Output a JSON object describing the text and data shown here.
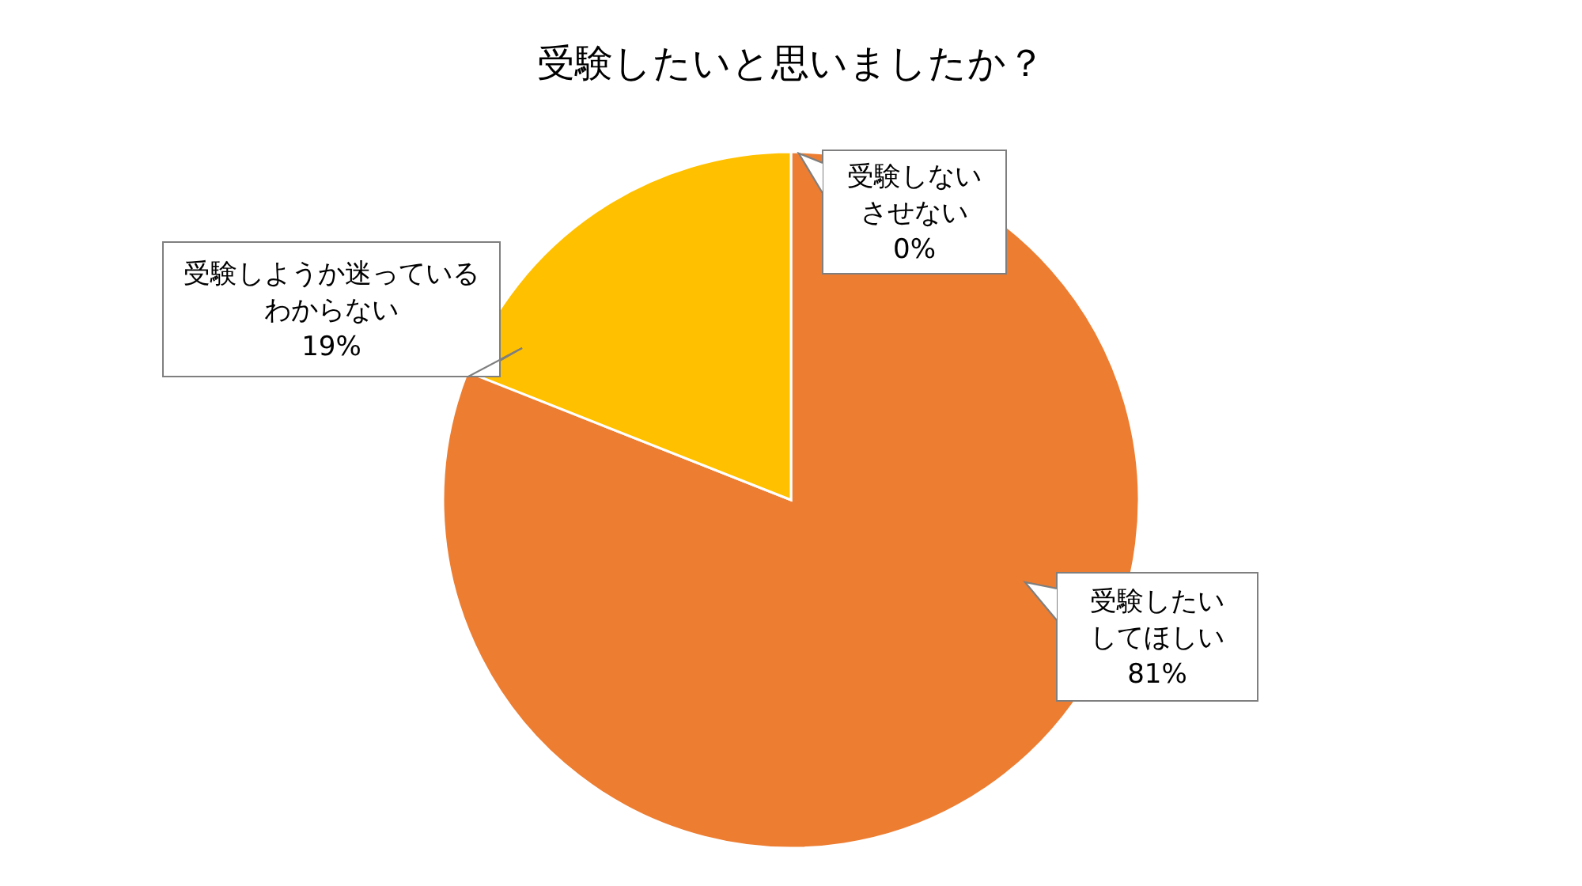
{
  "chart_data": {
    "type": "pie",
    "title": "受験したいと思いましたか？",
    "categories": [
      "受験したいしてほしい",
      "受験しようか迷っているわからない",
      "受験しないさせない"
    ],
    "values": [
      81,
      19,
      0
    ],
    "colors": [
      "#ed7d31",
      "#ffc000",
      null
    ],
    "value_labels": [
      "81%",
      "19%",
      "0%"
    ]
  }
}
